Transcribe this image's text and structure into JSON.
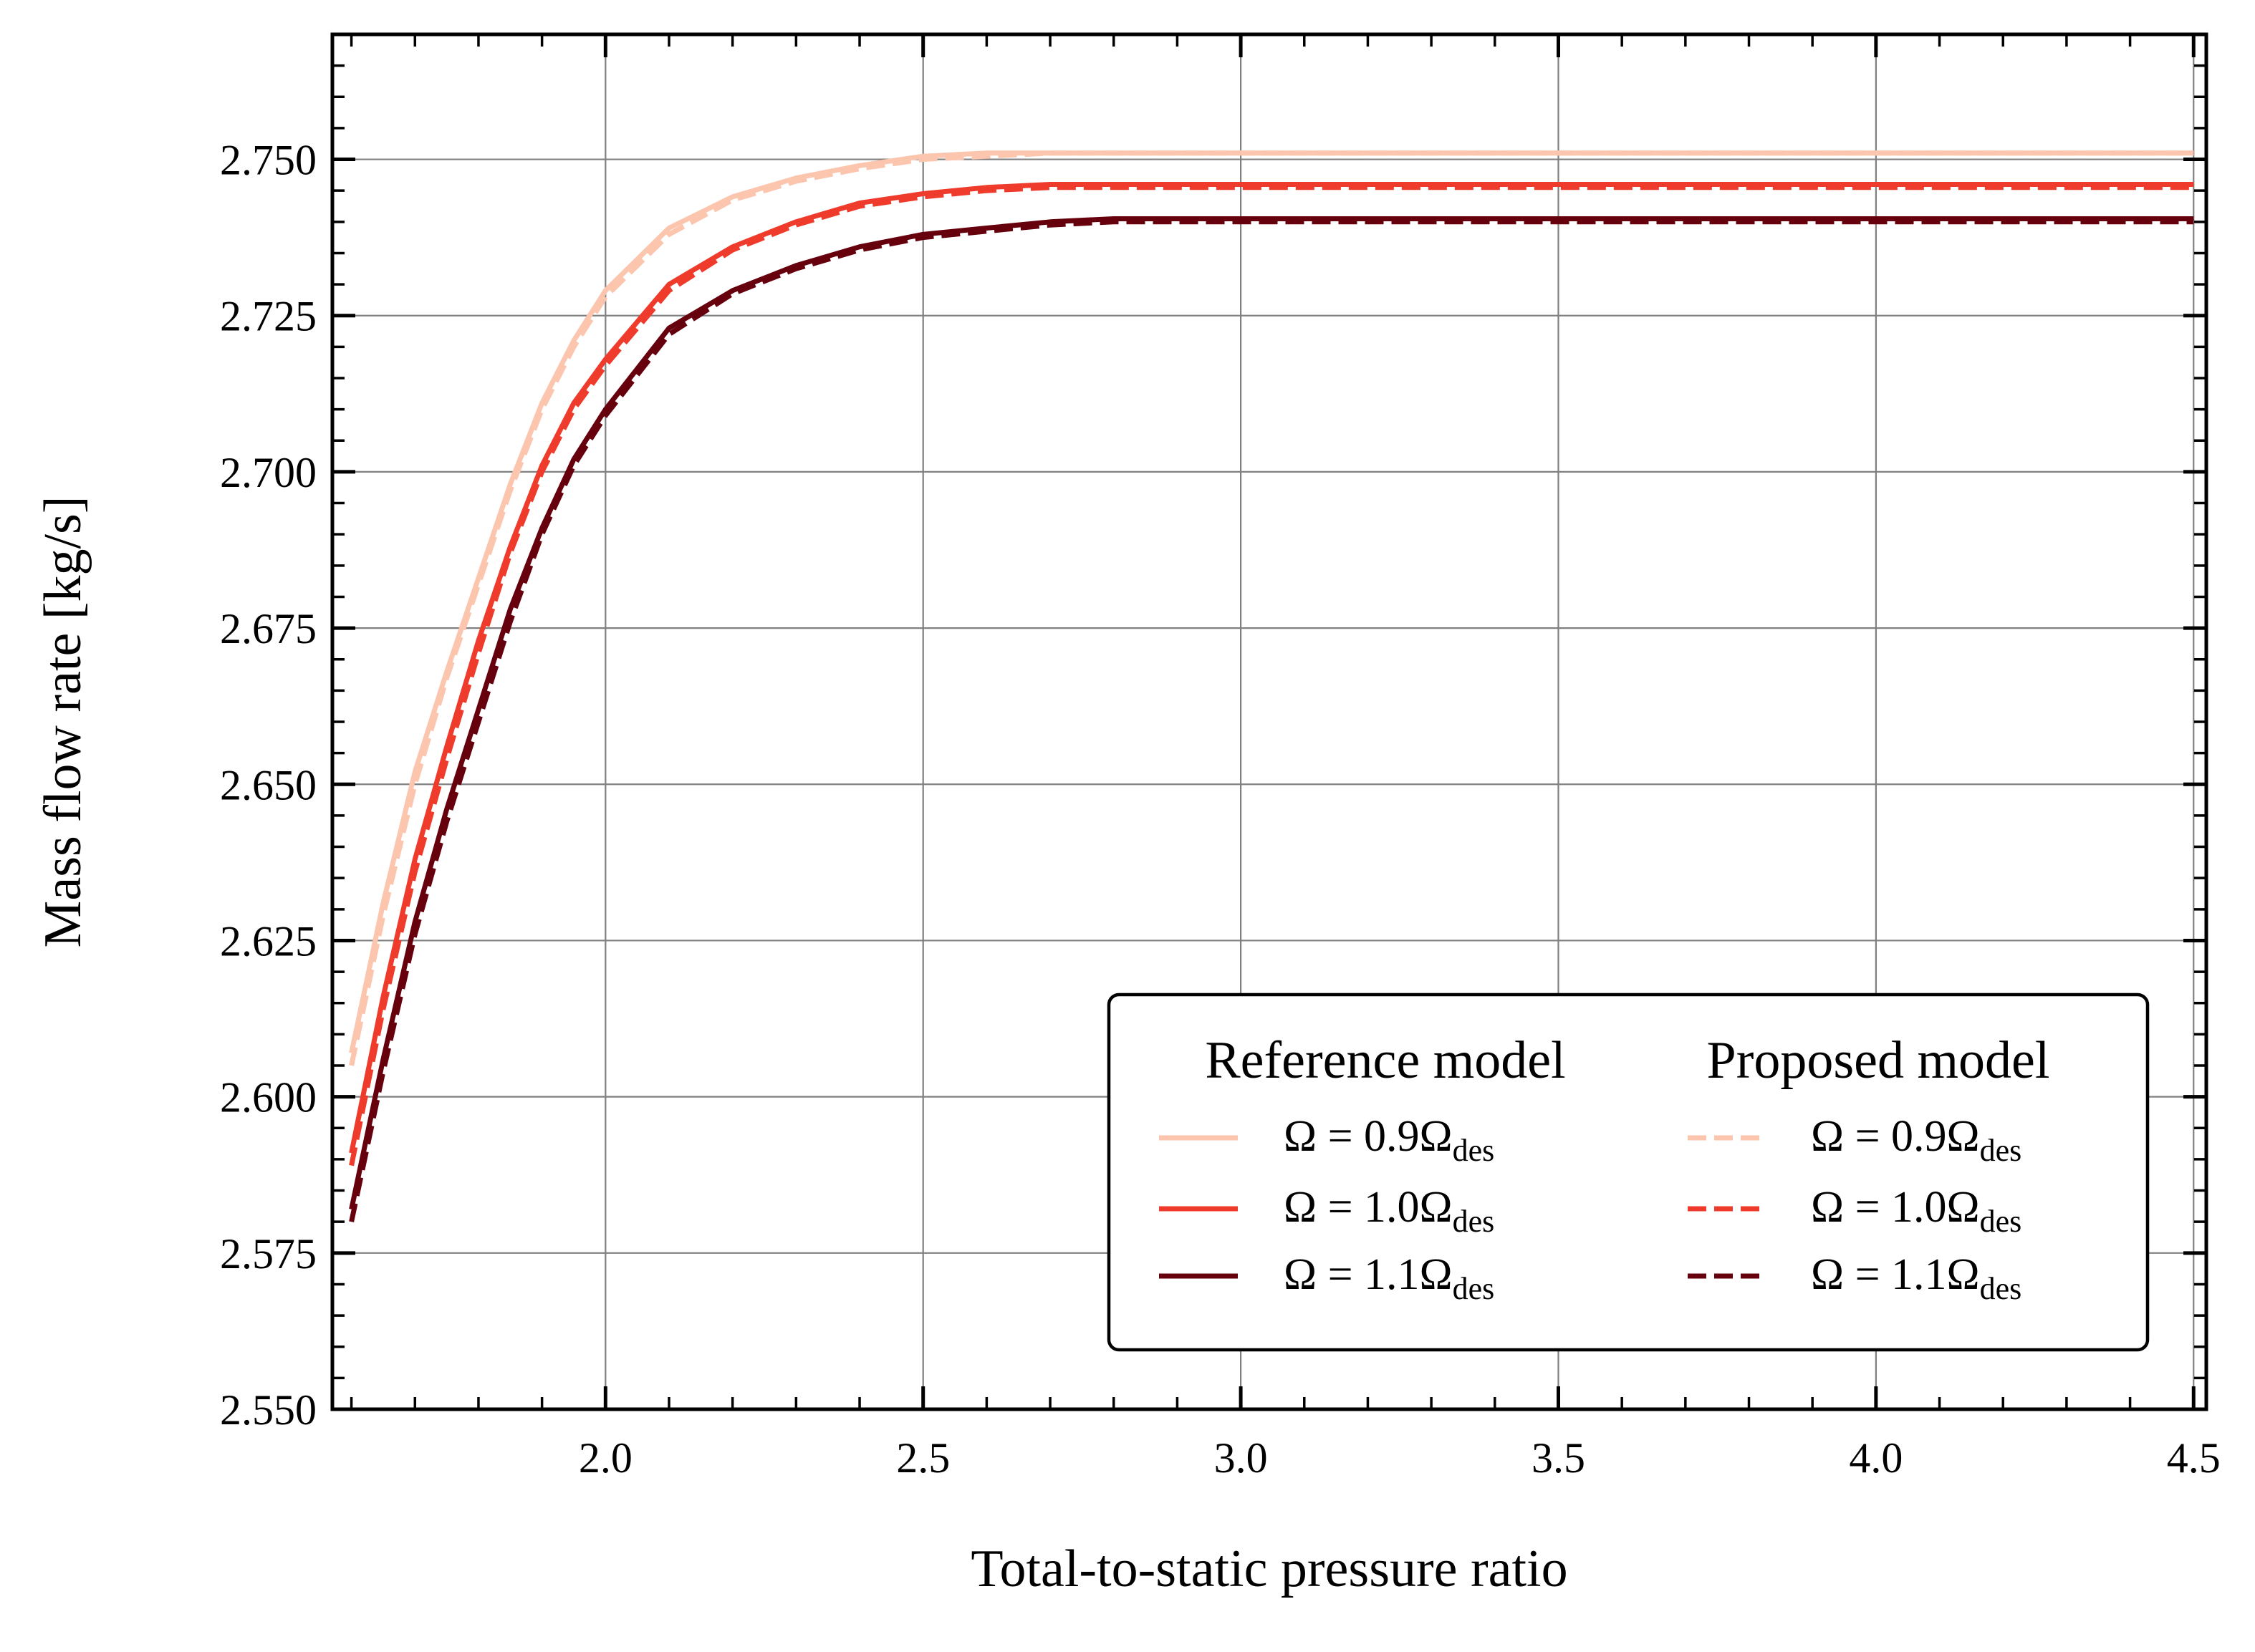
{
  "chart_data": {
    "type": "line",
    "title": "",
    "xlabel": "Total-to-static pressure ratio",
    "ylabel": "Mass flow rate [kg/s]",
    "xlim": [
      1.57,
      4.52
    ],
    "ylim": [
      2.55,
      2.77
    ],
    "x_ticks": [
      2.0,
      2.5,
      3.0,
      3.5,
      4.0,
      4.5
    ],
    "x_tick_labels": [
      "2.0",
      "2.5",
      "3.0",
      "3.5",
      "4.0",
      "4.5"
    ],
    "y_ticks": [
      2.55,
      2.575,
      2.6,
      2.625,
      2.65,
      2.675,
      2.7,
      2.725,
      2.75
    ],
    "y_tick_labels": [
      "2.550",
      "2.575",
      "2.600",
      "2.625",
      "2.650",
      "2.675",
      "2.700",
      "2.725",
      "2.750"
    ],
    "grid": true,
    "legend": {
      "placement": "lower-right",
      "columns": [
        {
          "title": "Reference model",
          "style": "solid",
          "entries": [
            {
              "prefix": "Ω = 0.9Ω",
              "sub": "des"
            },
            {
              "prefix": "Ω = 1.0Ω",
              "sub": "des"
            },
            {
              "prefix": "Ω = 1.1Ω",
              "sub": "des"
            }
          ]
        },
        {
          "title": "Proposed model",
          "style": "dashed",
          "entries": [
            {
              "prefix": "Ω = 0.9Ω",
              "sub": "des"
            },
            {
              "prefix": "Ω = 1.0Ω",
              "sub": "des"
            },
            {
              "prefix": "Ω = 1.1Ω",
              "sub": "des"
            }
          ]
        }
      ]
    },
    "series": [
      {
        "model": "Reference model",
        "speed": "0.9",
        "style": "solid",
        "color": "#fcc5ae",
        "x": [
          1.6,
          1.65,
          1.7,
          1.75,
          1.8,
          1.85,
          1.9,
          1.95,
          2.0,
          2.1,
          2.2,
          2.3,
          2.4,
          2.5,
          2.6,
          2.7,
          3.0,
          3.5,
          4.0,
          4.5
        ],
        "y": [
          2.607,
          2.631,
          2.652,
          2.668,
          2.683,
          2.698,
          2.711,
          2.721,
          2.729,
          2.739,
          2.744,
          2.747,
          2.749,
          2.7505,
          2.751,
          2.751,
          2.751,
          2.751,
          2.751,
          2.751
        ]
      },
      {
        "model": "Reference model",
        "speed": "1.0",
        "style": "solid",
        "color": "#ef3b2c",
        "x": [
          1.6,
          1.65,
          1.7,
          1.75,
          1.8,
          1.85,
          1.9,
          1.95,
          2.0,
          2.1,
          2.2,
          2.3,
          2.4,
          2.5,
          2.6,
          2.7,
          3.0,
          3.5,
          4.0,
          4.5
        ],
        "y": [
          2.591,
          2.616,
          2.638,
          2.656,
          2.673,
          2.688,
          2.701,
          2.711,
          2.718,
          2.73,
          2.736,
          2.74,
          2.743,
          2.7445,
          2.7455,
          2.746,
          2.746,
          2.746,
          2.746,
          2.746
        ]
      },
      {
        "model": "Reference model",
        "speed": "1.1",
        "style": "solid",
        "color": "#67000d",
        "x": [
          1.6,
          1.65,
          1.7,
          1.75,
          1.8,
          1.85,
          1.9,
          1.95,
          2.0,
          2.1,
          2.2,
          2.3,
          2.4,
          2.5,
          2.6,
          2.7,
          2.8,
          3.0,
          3.5,
          4.0,
          4.5
        ],
        "y": [
          2.582,
          2.606,
          2.628,
          2.646,
          2.662,
          2.678,
          2.691,
          2.702,
          2.71,
          2.723,
          2.729,
          2.733,
          2.736,
          2.738,
          2.739,
          2.74,
          2.7405,
          2.7405,
          2.7405,
          2.7405,
          2.7405
        ]
      },
      {
        "model": "Proposed model",
        "speed": "0.9",
        "style": "dashed",
        "color": "#fcc5ae",
        "x": [
          1.6,
          1.65,
          1.7,
          1.75,
          1.8,
          1.85,
          1.9,
          1.95,
          2.0,
          2.1,
          2.2,
          2.3,
          2.4,
          2.5,
          2.6,
          2.7,
          3.0,
          3.5,
          4.0,
          4.5
        ],
        "y": [
          2.605,
          2.629,
          2.65,
          2.667,
          2.682,
          2.697,
          2.71,
          2.72,
          2.728,
          2.738,
          2.7435,
          2.7465,
          2.7485,
          2.75,
          2.7505,
          2.751,
          2.751,
          2.751,
          2.751,
          2.751
        ]
      },
      {
        "model": "Proposed model",
        "speed": "1.0",
        "style": "dashed",
        "color": "#ef3b2c",
        "x": [
          1.6,
          1.65,
          1.7,
          1.75,
          1.8,
          1.85,
          1.9,
          1.95,
          2.0,
          2.1,
          2.2,
          2.3,
          2.4,
          2.5,
          2.6,
          2.7,
          3.0,
          3.5,
          4.0,
          4.5
        ],
        "y": [
          2.589,
          2.614,
          2.636,
          2.654,
          2.671,
          2.687,
          2.7,
          2.71,
          2.717,
          2.729,
          2.7355,
          2.7395,
          2.7425,
          2.744,
          2.745,
          2.7455,
          2.7455,
          2.7455,
          2.7455,
          2.7455
        ]
      },
      {
        "model": "Proposed model",
        "speed": "1.1",
        "style": "dashed",
        "color": "#67000d",
        "x": [
          1.6,
          1.65,
          1.7,
          1.75,
          1.8,
          1.85,
          1.9,
          1.95,
          2.0,
          2.1,
          2.2,
          2.3,
          2.4,
          2.5,
          2.6,
          2.7,
          2.8,
          3.0,
          3.5,
          4.0,
          4.5
        ],
        "y": [
          2.58,
          2.604,
          2.626,
          2.644,
          2.66,
          2.676,
          2.69,
          2.701,
          2.709,
          2.722,
          2.7285,
          2.7325,
          2.7355,
          2.7375,
          2.7385,
          2.7395,
          2.74,
          2.74,
          2.74,
          2.74,
          2.74
        ]
      }
    ]
  }
}
